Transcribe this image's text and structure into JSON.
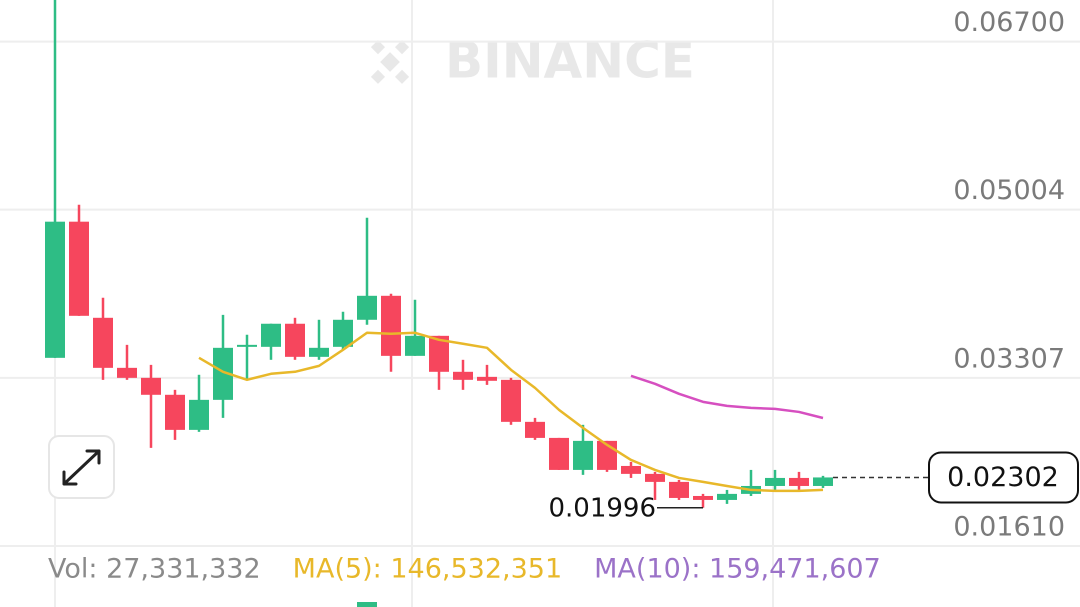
{
  "chart_data": {
    "type": "candlestick",
    "watermark": "BINANCE",
    "open": [
      0.03509,
      0.04883,
      0.03913,
      0.03408,
      0.03307,
      0.03136,
      0.02782,
      0.03085,
      0.0362,
      0.0362,
      0.03853,
      0.03519,
      0.0362,
      0.03893,
      0.04135,
      0.03529,
      0.03731,
      0.03368,
      0.03317,
      0.03287,
      0.02863,
      0.02701,
      0.02378,
      0.02671,
      0.02418,
      0.02338,
      0.02257,
      0.02115,
      0.02075,
      0.02136,
      0.02216,
      0.02297,
      0.02216
    ],
    "high": [
      0.0712,
      0.05054,
      0.04115,
      0.0364,
      0.03438,
      0.03186,
      0.03338,
      0.03943,
      0.03742,
      0.03853,
      0.03913,
      0.03893,
      0.03974,
      0.04923,
      0.04156,
      0.04095,
      0.03731,
      0.03489,
      0.03438,
      0.03307,
      0.02903,
      0.02701,
      0.02833,
      0.02671,
      0.02459,
      0.02358,
      0.02277,
      0.02136,
      0.02176,
      0.02378,
      0.02378,
      0.02358,
      0.02318
    ],
    "low": [
      0.03509,
      0.03933,
      0.03287,
      0.03287,
      0.026,
      0.02681,
      0.02762,
      0.02903,
      0.03287,
      0.03489,
      0.03489,
      0.03489,
      0.0359,
      0.03843,
      0.03368,
      0.03529,
      0.03186,
      0.03186,
      0.03236,
      0.02833,
      0.02681,
      0.02378,
      0.02328,
      0.02358,
      0.02297,
      0.02075,
      0.02075,
      0.01996,
      0.02035,
      0.02115,
      0.02176,
      0.02176,
      0.02196
    ],
    "close": [
      0.04883,
      0.03933,
      0.03408,
      0.03307,
      0.03136,
      0.02782,
      0.03085,
      0.0361,
      0.0364,
      0.03853,
      0.03519,
      0.0361,
      0.03893,
      0.04135,
      0.03529,
      0.03731,
      0.03368,
      0.03287,
      0.03277,
      0.02863,
      0.02701,
      0.02378,
      0.02671,
      0.02378,
      0.02338,
      0.02257,
      0.02095,
      0.02075,
      0.02136,
      0.02216,
      0.02297,
      0.02216,
      0.02302
    ],
    "up_color": "#2ebd85",
    "down_color": "#f6465d",
    "lines": [
      {
        "color": "#e8b82a",
        "values": [
          null,
          null,
          null,
          null,
          null,
          null,
          0.03509,
          0.03368,
          0.03287,
          0.03348,
          0.03368,
          0.03428,
          0.0359,
          0.03762,
          0.03752,
          0.03762,
          0.03691,
          0.03651,
          0.0361,
          0.03388,
          0.03206,
          0.02984,
          0.02802,
          0.02631,
          0.02479,
          0.02378,
          0.02297,
          0.02257,
          0.02216,
          0.02176,
          0.02166,
          0.02166,
          0.02176
        ]
      },
      {
        "color": "#d64fc0",
        "values": [
          null,
          null,
          null,
          null,
          null,
          null,
          null,
          null,
          null,
          null,
          null,
          null,
          null,
          null,
          null,
          null,
          null,
          null,
          null,
          null,
          null,
          null,
          null,
          null,
          0.03327,
          0.03247,
          0.03146,
          0.03065,
          0.03024,
          0.03004,
          0.02994,
          0.02963,
          0.02902
        ]
      }
    ],
    "ylim": [
      0.0159,
      0.0712
    ],
    "yticks": [
      {
        "value": 0.067,
        "label": "0.06700"
      },
      0.05004,
      0.03307,
      {
        "value": 0.0161,
        "label": "0.01610"
      }
    ],
    "grid": true,
    "low_marker": 0.01996,
    "last_price": 0.02302,
    "volume_legend": [
      {
        "text": "Vol: 27,331,332",
        "color": "#8a8a8a"
      },
      {
        "text": "MA(5): 146,532,351",
        "color": "#e8b82a"
      },
      {
        "text": "MA(10): 159,471,607",
        "color": "#9b72c8"
      }
    ]
  }
}
